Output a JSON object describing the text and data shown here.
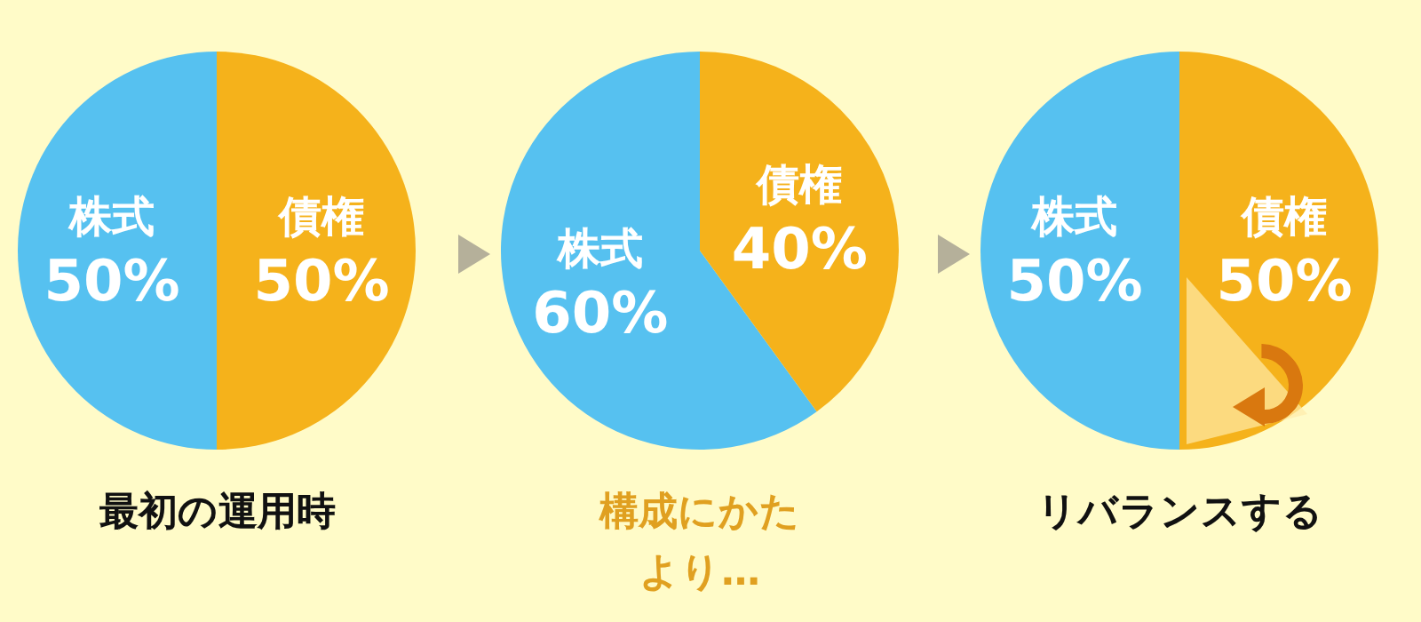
{
  "chart_data": [
    {
      "type": "pie",
      "categories": [
        "株式",
        "債権"
      ],
      "values": [
        50,
        50
      ],
      "colors": [
        "#56c1f0",
        "#f5b21b"
      ],
      "value_labels": [
        "50%",
        "50%"
      ],
      "annotations": [
        "最初の運用時"
      ]
    },
    {
      "type": "pie",
      "categories": [
        "株式",
        "債権"
      ],
      "values": [
        60,
        40
      ],
      "colors": [
        "#56c1f0",
        "#f5b21b"
      ],
      "value_labels": [
        "60%",
        "40%"
      ],
      "annotations": [
        "構成にかたより…"
      ]
    },
    {
      "type": "pie",
      "categories": [
        "株式",
        "債権"
      ],
      "values": [
        50,
        50
      ],
      "colors": [
        "#56c1f0",
        "#f5b21b"
      ],
      "value_labels": [
        "50%",
        "50%"
      ],
      "annotations": [
        "リバランスする"
      ]
    }
  ]
}
